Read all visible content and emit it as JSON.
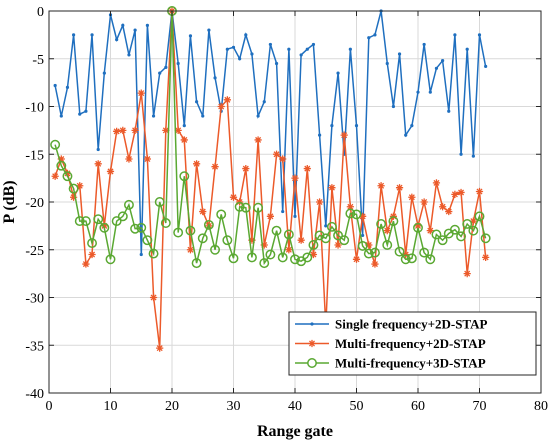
{
  "chart_data": {
    "type": "line",
    "xlabel": "Range gate",
    "ylabel": "P (dB)",
    "xlim": [
      0,
      80
    ],
    "ylim": [
      -40,
      0
    ],
    "xticks": [
      0,
      10,
      20,
      30,
      40,
      50,
      60,
      70,
      80
    ],
    "yticks": [
      0,
      -5,
      -10,
      -15,
      -20,
      -25,
      -30,
      -35,
      -40
    ],
    "grid": true,
    "legend_position": "bottom-right",
    "series": [
      {
        "name": "Single frequency+2D-STAP",
        "color": "#1f6fbf",
        "marker": "dot",
        "x": [
          1,
          2,
          3,
          4,
          5,
          6,
          7,
          8,
          9,
          10,
          11,
          12,
          13,
          14,
          15,
          16,
          17,
          18,
          19,
          20,
          21,
          22,
          23,
          24,
          25,
          26,
          27,
          28,
          29,
          30,
          31,
          32,
          33,
          34,
          35,
          36,
          37,
          38,
          39,
          40,
          41,
          42,
          43,
          44,
          45,
          46,
          47,
          48,
          49,
          50,
          51,
          52,
          53,
          54,
          55,
          56,
          57,
          58,
          59,
          60,
          61,
          62,
          63,
          64,
          65,
          66,
          67,
          68,
          69,
          70,
          71
        ],
        "values": [
          -7.8,
          -11.0,
          -8.0,
          -2.5,
          -10.8,
          -10.5,
          -2.5,
          -14.5,
          -6.5,
          -0.4,
          -3.0,
          -1.5,
          -4.6,
          -2.0,
          -25.5,
          -1.5,
          -11.0,
          -6.5,
          -5.9,
          0,
          -5.5,
          -12.0,
          -2.6,
          -9.5,
          -11.0,
          -2.0,
          -7.0,
          -10.5,
          -4.0,
          -3.8,
          -5.0,
          -2.5,
          -4.5,
          -11.0,
          -9.5,
          -3.5,
          -5.5,
          -21.0,
          -4.0,
          -21.5,
          -4.6,
          -4.0,
          -3.5,
          -13.0,
          -22.5,
          -12.0,
          -6.5,
          -15.0,
          -4.0,
          -12.0,
          -23.5,
          -2.8,
          -2.5,
          0,
          -5.5,
          -10.0,
          -4.5,
          -13.0,
          -12.0,
          -8.5,
          -3.5,
          -8.5,
          -6.0,
          -5.2,
          -10.5,
          -2.5,
          -15.0,
          -4.0,
          -15.2,
          -2.5,
          -5.8
        ]
      },
      {
        "name": "Multi-frequency+2D-STAP",
        "color": "#ec5a2a",
        "marker": "asterisk",
        "x": [
          1,
          2,
          3,
          4,
          5,
          6,
          7,
          8,
          9,
          10,
          11,
          12,
          13,
          14,
          15,
          16,
          17,
          18,
          19,
          20,
          21,
          22,
          23,
          24,
          25,
          26,
          27,
          28,
          29,
          30,
          31,
          32,
          33,
          34,
          35,
          36,
          37,
          38,
          39,
          40,
          41,
          42,
          43,
          44,
          45,
          46,
          47,
          48,
          49,
          50,
          51,
          52,
          53,
          54,
          55,
          56,
          57,
          58,
          59,
          60,
          61,
          62,
          63,
          64,
          65,
          66,
          67,
          68,
          69,
          70,
          71
        ],
        "values": [
          -17.3,
          -15.5,
          -17.0,
          -19.5,
          -18.3,
          -26.5,
          -25.5,
          -16.0,
          -22.5,
          -16.8,
          -12.6,
          -12.5,
          -15.5,
          -12.5,
          -8.6,
          -15.5,
          -30.0,
          -35.3,
          -12.5,
          0,
          -12.5,
          -13.5,
          -25.0,
          -16.0,
          -21.0,
          -22.5,
          -16.3,
          -10.0,
          -9.3,
          -19.5,
          -20.0,
          -16.5,
          -24.0,
          -13.5,
          -24.5,
          -21.5,
          -15.0,
          -15.5,
          -25.0,
          -17.5,
          -24.0,
          -16.5,
          -25.5,
          -20.0,
          -33.0,
          -18.5,
          -24.5,
          -13.0,
          -20.5,
          -26.0,
          -21.5,
          -24.5,
          -26.5,
          -18.3,
          -23.0,
          -21.5,
          -18.5,
          -25.5,
          -19.5,
          -22.5,
          -20.0,
          -23.0,
          -18.0,
          -20.5,
          -21.0,
          -19.2,
          -19.0,
          -27.5,
          -22.0,
          -18.9,
          -25.8
        ]
      },
      {
        "name": "Multi-frequency+3D-STAP",
        "color": "#5aa832",
        "marker": "circle",
        "x": [
          1,
          2,
          3,
          4,
          5,
          6,
          7,
          8,
          9,
          10,
          11,
          12,
          13,
          14,
          15,
          16,
          17,
          18,
          19,
          20,
          21,
          22,
          23,
          24,
          25,
          26,
          27,
          28,
          29,
          30,
          31,
          32,
          33,
          34,
          35,
          36,
          37,
          38,
          39,
          40,
          41,
          42,
          43,
          44,
          45,
          46,
          47,
          48,
          49,
          50,
          51,
          52,
          53,
          54,
          55,
          56,
          57,
          58,
          59,
          60,
          61,
          62,
          63,
          64,
          65,
          66,
          67,
          68,
          69,
          70,
          71
        ],
        "values": [
          -14.0,
          -16.2,
          -17.3,
          -18.6,
          -22.0,
          -22.0,
          -24.3,
          -21.8,
          -22.7,
          -26.0,
          -22.0,
          -21.5,
          -20.3,
          -22.8,
          -22.7,
          -24.0,
          -25.4,
          -20.0,
          -22.2,
          0,
          -23.2,
          -17.3,
          -23.0,
          -26.4,
          -23.8,
          -22.4,
          -25.0,
          -21.3,
          -24.0,
          -25.9,
          -20.5,
          -20.6,
          -25.8,
          -20.6,
          -26.4,
          -25.5,
          -23.0,
          -25.8,
          -23.4,
          -26.0,
          -26.2,
          -25.8,
          -24.5,
          -23.5,
          -23.8,
          -22.6,
          -23.5,
          -24.0,
          -21.2,
          -21.3,
          -24.6,
          -25.4,
          -25.3,
          -22.3,
          -24.5,
          -22.0,
          -25.2,
          -26.0,
          -25.9,
          -22.7,
          -25.3,
          -26.0,
          -23.4,
          -24.0,
          -23.3,
          -22.9,
          -23.6,
          -22.3,
          -23.0,
          -21.5,
          -23.8
        ]
      }
    ]
  }
}
